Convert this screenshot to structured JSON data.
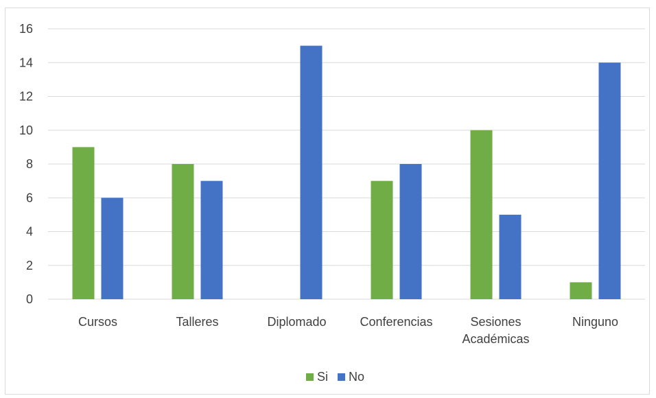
{
  "chart_data": {
    "type": "bar",
    "title": "",
    "xlabel": "",
    "ylabel": "",
    "categories": [
      [
        "Cursos"
      ],
      [
        "Talleres"
      ],
      [
        "Diplomado"
      ],
      [
        "Conferencias"
      ],
      [
        "Sesiones",
        "Académicas"
      ],
      [
        "Ninguno"
      ]
    ],
    "series": [
      {
        "name": "Si",
        "color": "#70ad47",
        "values": [
          9,
          8,
          0,
          7,
          10,
          1
        ]
      },
      {
        "name": "No",
        "color": "#4472c4",
        "values": [
          6,
          7,
          15,
          8,
          5,
          14
        ]
      }
    ],
    "ylim": [
      0,
      16
    ],
    "yticks": [
      0,
      2,
      4,
      6,
      8,
      10,
      12,
      14,
      16
    ],
    "grid": true,
    "gridline_color": "#d9d9d9",
    "legend_position": "bottom"
  }
}
